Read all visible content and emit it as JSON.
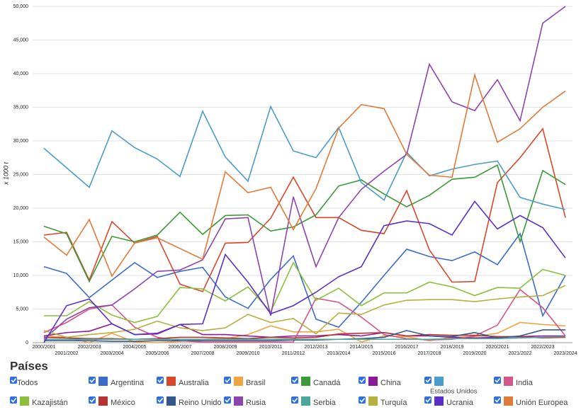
{
  "chart_data": {
    "type": "line",
    "y_label": "x 1000 t",
    "legend_title": "Países",
    "select_all": "Todos",
    "grid": true,
    "ylim": [
      0,
      50000
    ],
    "yticks": [
      0,
      {
        "value": 5000,
        "label": "5,000"
      },
      {
        "value": 10000,
        "label": "10,000"
      },
      {
        "value": 15000,
        "label": "15,000"
      },
      {
        "value": 20000,
        "label": "20,000"
      },
      {
        "value": 25000,
        "label": "25,000"
      },
      {
        "value": 30000,
        "label": "30,000"
      },
      {
        "value": 35000,
        "label": "35,000"
      },
      {
        "value": 40000,
        "label": "40,000"
      },
      {
        "value": 45000,
        "label": "45,000"
      },
      {
        "value": 50000,
        "label": "50,000"
      }
    ],
    "categories": [
      "2000/2001",
      "2001/2002",
      "2002/2003",
      "2003/2004",
      "2004/2005",
      "2005/2006",
      "2006/2007",
      "2007/2008",
      "2008/2009",
      "2009/2010",
      "2010/2011",
      "2011/2012",
      "2012/2013",
      "2013/2014",
      "2014/2015",
      "2015/2016",
      "2016/2017",
      "2017/2018",
      "2018/2019",
      "2019/2020",
      "2020/2021",
      "2021/2022",
      "2022/2023",
      "2023/2024"
    ],
    "series": [
      {
        "name": "Argentina",
        "color": "#3b6ccc",
        "values": [
          11300,
          10300,
          6700,
          9300,
          11900,
          9700,
          10600,
          11200,
          6800,
          5100,
          9400,
          12900,
          3500,
          2300,
          6000,
          10000,
          13900,
          12800,
          12200,
          13500,
          11600,
          16200,
          4000,
          10000
        ]
      },
      {
        "name": "Australia",
        "color": "#d9472b",
        "values": [
          16000,
          16400,
          9300,
          18000,
          14800,
          15800,
          8700,
          7600,
          14800,
          14900,
          18500,
          24600,
          18600,
          18600,
          16700,
          16200,
          22600,
          13800,
          9000,
          9100,
          23800,
          27500,
          31800,
          18600
        ]
      },
      {
        "name": "Brasil",
        "color": "#f2a444",
        "values": [
          1000,
          800,
          0,
          1400,
          100,
          0,
          200,
          500,
          600,
          1200,
          2500,
          1600,
          1600,
          2000,
          100,
          1000,
          900,
          300,
          800,
          900,
          1400,
          3000,
          2700,
          2500
        ]
      },
      {
        "name": "Canadá",
        "color": "#3a9a35",
        "values": [
          17300,
          16200,
          9100,
          15800,
          15000,
          16000,
          19400,
          16100,
          18900,
          19000,
          16600,
          17200,
          19000,
          23300,
          24200,
          22100,
          20200,
          21900,
          24300,
          24600,
          26400,
          15000,
          25600,
          23500
        ]
      },
      {
        "name": "China",
        "color": "#8a1a9a",
        "values": [
          1000,
          1500,
          1700,
          2800,
          1200,
          1300,
          2700,
          1200,
          1200,
          1000,
          800,
          1000,
          1000,
          1200,
          1000,
          1500,
          1000,
          1000,
          800,
          700,
          800,
          900,
          1000,
          1000
        ]
      },
      {
        "name": "Estados Unidos",
        "color": "#4a9ccc",
        "values": [
          28900,
          26000,
          23100,
          31500,
          29000,
          27300,
          24700,
          34400,
          27600,
          24000,
          35100,
          28500,
          27500,
          32000,
          23800,
          21200,
          28300,
          24800,
          25800,
          26500,
          27000,
          21600,
          20600,
          19800
        ]
      },
      {
        "name": "India",
        "color": "#d6558a",
        "values": [
          1500,
          3000,
          5000,
          5600,
          2300,
          800,
          300,
          100,
          100,
          100,
          100,
          100,
          6600,
          6000,
          3800,
          1200,
          600,
          400,
          500,
          1000,
          2600,
          7900,
          5200,
          1000
        ]
      },
      {
        "name": "Kazajistán",
        "color": "#8cbf3a",
        "values": [
          4000,
          4000,
          6100,
          4100,
          3000,
          3900,
          8200,
          8000,
          6200,
          8300,
          4600,
          11900,
          6300,
          8100,
          5500,
          7400,
          7400,
          9000,
          8300,
          7000,
          8200,
          8100,
          10900,
          10000
        ]
      },
      {
        "name": "México",
        "color": "#b83232",
        "values": [
          800,
          700,
          600,
          600,
          500,
          600,
          800,
          800,
          700,
          600,
          800,
          700,
          800,
          1300,
          1400,
          1500,
          1000,
          1200,
          1100,
          1100,
          900,
          900,
          700,
          800
        ]
      },
      {
        "name": "Reino Unido",
        "color": "#35588c",
        "values": [
          300,
          300,
          300,
          200,
          200,
          300,
          300,
          300,
          300,
          300,
          300,
          400,
          400,
          500,
          600,
          800,
          1800,
          1000,
          900,
          1500,
          700,
          1000,
          1900,
          1900
        ]
      },
      {
        "name": "Rusia",
        "color": "#8e44ad",
        "values": [
          500,
          3500,
          5200,
          5600,
          8000,
          10600,
          10800,
          12300,
          18400,
          18600,
          4000,
          21700,
          11300,
          18600,
          22800,
          25500,
          28000,
          41400,
          35800,
          34500,
          39100,
          33000,
          47500,
          50000
        ]
      },
      {
        "name": "Serbia",
        "color": "#4aa89a",
        "values": [
          500,
          500,
          500,
          500,
          500,
          500,
          500,
          500,
          500,
          500,
          500,
          500,
          500,
          500,
          500,
          500,
          500,
          500,
          600,
          600,
          600,
          700,
          800,
          900
        ]
      },
      {
        "name": "Turquía",
        "color": "#b5b040",
        "values": [
          1800,
          800,
          1200,
          1500,
          2000,
          3200,
          2200,
          1800,
          2200,
          4200,
          3000,
          3600,
          1300,
          4400,
          4200,
          5600,
          6300,
          6400,
          6400,
          6100,
          6500,
          6800,
          7000,
          8500
        ]
      },
      {
        "name": "Ucrania",
        "color": "#5b2fc9",
        "values": [
          0,
          5500,
          6500,
          2800,
          1200,
          1400,
          2700,
          2800,
          13100,
          9000,
          4300,
          5500,
          7500,
          9800,
          11300,
          17400,
          18100,
          17700,
          16000,
          21000,
          16900,
          18900,
          17100,
          12600
        ]
      },
      {
        "name": "Unión Europea",
        "color": "#e07b39",
        "values": [
          15700,
          13000,
          18300,
          9900,
          14800,
          15600,
          14000,
          12400,
          25400,
          22300,
          23100,
          16800,
          22900,
          31900,
          35400,
          34800,
          28000,
          24900,
          24600,
          39800,
          29800,
          31800,
          35000,
          37400
        ]
      }
    ]
  }
}
